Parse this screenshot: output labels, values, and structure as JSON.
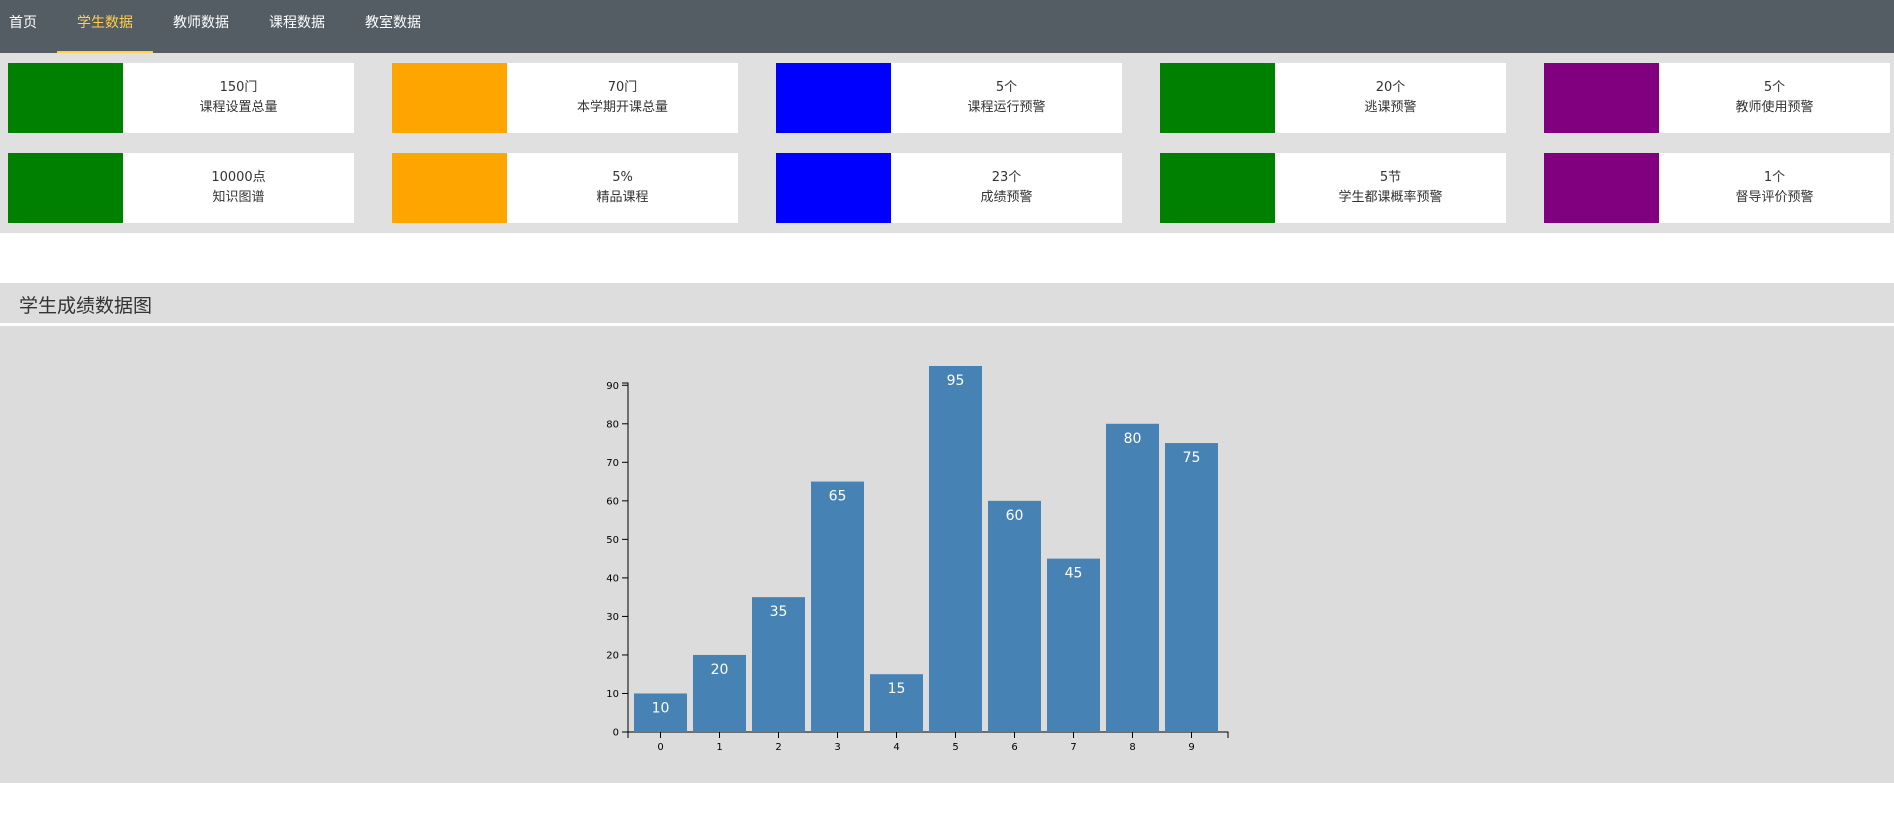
{
  "nav": {
    "items": [
      {
        "label": "首页",
        "active": false
      },
      {
        "label": "学生数据",
        "active": true
      },
      {
        "label": "教师数据",
        "active": false
      },
      {
        "label": "课程数据",
        "active": false
      },
      {
        "label": "教室数据",
        "active": false
      }
    ],
    "active_color": "#ffd04b",
    "background": "#545c64"
  },
  "stats": [
    {
      "value": "150门",
      "label": "课程设置总量",
      "color": "#008000"
    },
    {
      "value": "70门",
      "label": "本学期开课总量",
      "color": "#ffa500"
    },
    {
      "value": "5个",
      "label": "课程运行预警",
      "color": "#0000ff"
    },
    {
      "value": "20个",
      "label": "逃课预警",
      "color": "#008000"
    },
    {
      "value": "5个",
      "label": "教师使用预警",
      "color": "#800080"
    },
    {
      "value": "10000点",
      "label": "知识图谱",
      "color": "#008000"
    },
    {
      "value": "5%",
      "label": "精品课程",
      "color": "#ffa500"
    },
    {
      "value": "23个",
      "label": "成绩预警",
      "color": "#0000ff"
    },
    {
      "value": "5节",
      "label": "学生都课概率预警",
      "color": "#008000"
    },
    {
      "value": "1个",
      "label": "督导评价预警",
      "color": "#800080"
    }
  ],
  "section": {
    "title": "学生成绩数据图"
  },
  "chart_data": {
    "type": "bar",
    "categories": [
      "0",
      "1",
      "2",
      "3",
      "4",
      "5",
      "6",
      "7",
      "8",
      "9"
    ],
    "values": [
      10,
      20,
      35,
      65,
      15,
      95,
      60,
      45,
      80,
      75
    ],
    "y_ticks": [
      0,
      10,
      20,
      30,
      40,
      50,
      60,
      70,
      80,
      90
    ],
    "ylim": [
      0,
      95
    ],
    "bar_color": "#4682b4",
    "label_color": "#ffffff",
    "grid": false
  }
}
